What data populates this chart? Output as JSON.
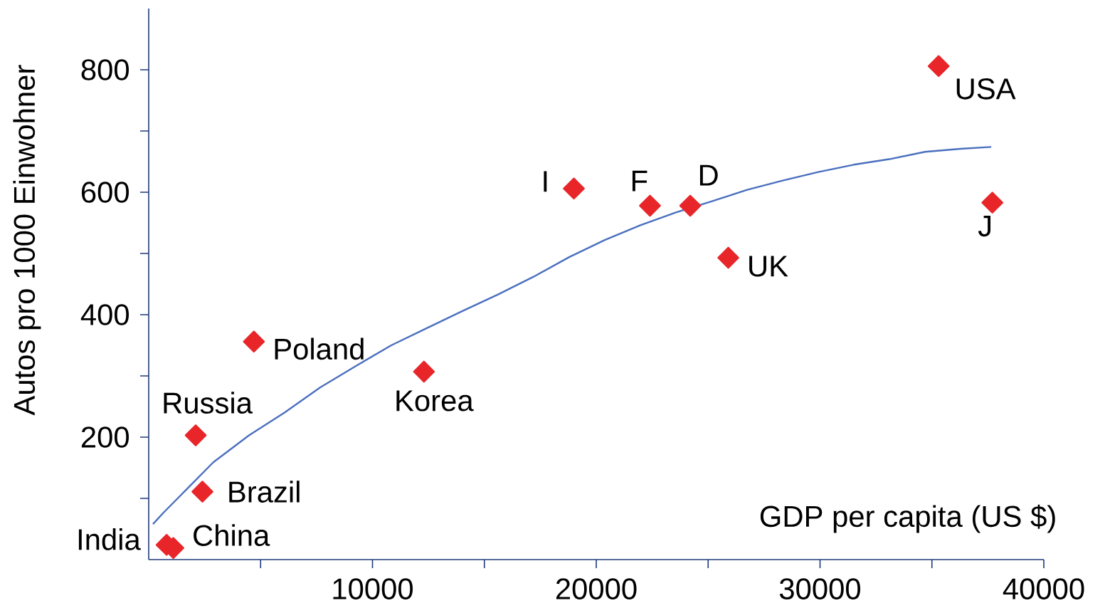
{
  "chart_data": {
    "type": "scatter",
    "xlabel": "GDP per capita (US $)",
    "ylabel": "Autos pro 1000 Einwohner",
    "xlim": [
      0,
      40000
    ],
    "ylim": [
      0,
      900
    ],
    "xticks": [
      {
        "value": 5000,
        "label": null
      },
      10000,
      {
        "value": 15000,
        "label": null
      },
      20000,
      {
        "value": 25000,
        "label": null
      },
      30000,
      {
        "value": 35000,
        "label": null
      },
      40000
    ],
    "yticks": [
      {
        "value": 100,
        "label": null
      },
      200,
      {
        "value": 300,
        "label": null
      },
      400,
      {
        "value": 500,
        "label": null
      },
      600,
      {
        "value": 700,
        "label": null
      },
      800
    ],
    "series": [
      {
        "type": "line",
        "color": "#4a6fbf",
        "marker": "none",
        "x": [
          190,
          670,
          1620,
          2890,
          4480,
          6070,
          7660,
          9250,
          10840,
          12430,
          14020,
          15610,
          17200,
          18790,
          20380,
          21970,
          23560,
          25150,
          26740,
          28330,
          29920,
          31510,
          33100,
          34690,
          36280,
          37650
        ],
        "values": [
          58,
          77,
          112,
          159,
          203,
          240,
          281,
          316,
          350,
          378,
          406,
          433,
          462,
          494,
          522,
          546,
          567,
          585,
          604,
          619,
          633,
          645,
          654,
          666,
          671,
          674
        ]
      },
      {
        "color": "#e8262a",
        "marker": "diamond",
        "x": [
          800,
          1100,
          2400,
          2100,
          4700,
          12300,
          19000,
          22400,
          24200,
          25900,
          35300,
          37700
        ],
        "values": [
          24,
          19,
          111,
          203,
          356,
          307,
          606,
          578,
          578,
          493,
          806,
          583
        ]
      }
    ],
    "annotations": [
      {
        "text": "India",
        "x": 800,
        "y": 24
      },
      {
        "text": "China",
        "x": 1100,
        "y": 19
      },
      {
        "text": "Brazil",
        "x": 2400,
        "y": 111
      },
      {
        "text": "Russia",
        "x": 2100,
        "y": 203
      },
      {
        "text": "Poland",
        "x": 4700,
        "y": 356
      },
      {
        "text": "Korea",
        "x": 12300,
        "y": 307
      },
      {
        "text": "I",
        "x": 19000,
        "y": 606
      },
      {
        "text": "F",
        "x": 22400,
        "y": 578
      },
      {
        "text": "D",
        "x": 24200,
        "y": 578
      },
      {
        "text": "UK",
        "x": 25900,
        "y": 493
      },
      {
        "text": "USA",
        "x": 35300,
        "y": 806
      },
      {
        "text": "J",
        "x": 37700,
        "y": 583
      }
    ]
  }
}
